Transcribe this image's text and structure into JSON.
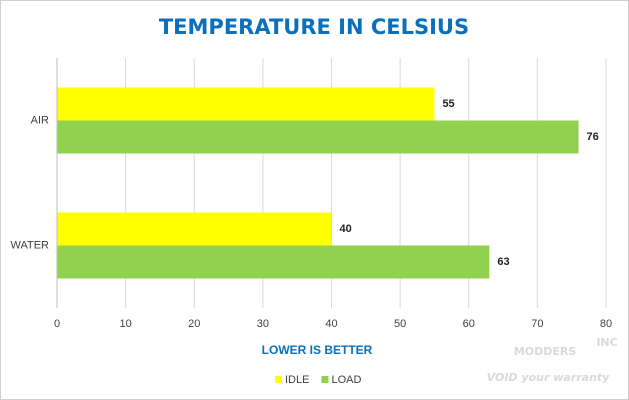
{
  "chart_data": {
    "type": "bar",
    "orientation": "horizontal",
    "title": "TEMPERATURE IN CELSIUS",
    "x_label": "LOWER IS BETTER",
    "categories": [
      "AIR",
      "WATER"
    ],
    "series": [
      {
        "name": "IDLE",
        "color": "#ffff00",
        "values": [
          55,
          40
        ]
      },
      {
        "name": "LOAD",
        "color": "#92d050",
        "values": [
          76,
          63
        ]
      }
    ],
    "xlim": [
      0,
      80
    ],
    "xticks": [
      0,
      10,
      20,
      30,
      40,
      50,
      60,
      70,
      80
    ],
    "grid": true,
    "legend": "bottom",
    "watermark": [
      "MODDERS",
      "INC",
      "VOID your warranty"
    ]
  }
}
